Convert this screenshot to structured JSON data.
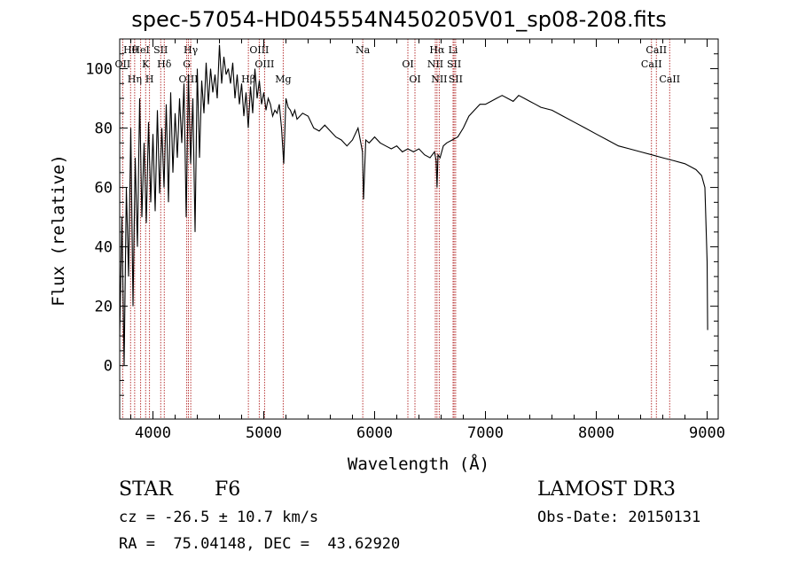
{
  "chart_data": {
    "type": "line",
    "title": "spec-57054-HD045554N450205V01_sp08-208.fits",
    "xlabel": "Wavelength (Å)",
    "ylabel": "Flux (relative)",
    "xlim": [
      3700,
      9100
    ],
    "ylim": [
      -18,
      110
    ],
    "xticks": [
      4000,
      5000,
      6000,
      7000,
      8000,
      9000
    ],
    "yticks": [
      0,
      20,
      40,
      60,
      80,
      100
    ],
    "series": [
      {
        "name": "flux",
        "x": [
          3700,
          3720,
          3740,
          3760,
          3780,
          3800,
          3820,
          3840,
          3860,
          3880,
          3900,
          3920,
          3940,
          3960,
          3980,
          4000,
          4020,
          4040,
          4060,
          4080,
          4100,
          4120,
          4140,
          4160,
          4180,
          4200,
          4220,
          4240,
          4260,
          4280,
          4300,
          4320,
          4340,
          4360,
          4380,
          4400,
          4420,
          4440,
          4460,
          4480,
          4500,
          4520,
          4540,
          4560,
          4580,
          4600,
          4620,
          4640,
          4660,
          4680,
          4700,
          4720,
          4740,
          4760,
          4780,
          4800,
          4820,
          4840,
          4860,
          4880,
          4900,
          4920,
          4940,
          4960,
          4980,
          5000,
          5020,
          5040,
          5060,
          5080,
          5100,
          5120,
          5140,
          5160,
          5180,
          5200,
          5220,
          5240,
          5260,
          5280,
          5300,
          5350,
          5400,
          5450,
          5500,
          5550,
          5600,
          5650,
          5700,
          5750,
          5800,
          5850,
          5890,
          5900,
          5920,
          5950,
          6000,
          6050,
          6100,
          6150,
          6200,
          6250,
          6300,
          6350,
          6400,
          6450,
          6500,
          6540,
          6555,
          6563,
          6572,
          6590,
          6620,
          6650,
          6700,
          6750,
          6800,
          6850,
          6900,
          6950,
          7000,
          7050,
          7100,
          7150,
          7200,
          7250,
          7300,
          7350,
          7400,
          7450,
          7500,
          7600,
          7700,
          7800,
          7900,
          8000,
          8100,
          8200,
          8300,
          8400,
          8500,
          8600,
          8700,
          8800,
          8850,
          8900,
          8950,
          8980,
          9000,
          9005
        ],
        "values": [
          10,
          50,
          0,
          60,
          30,
          80,
          20,
          70,
          40,
          90,
          50,
          75,
          48,
          82,
          55,
          78,
          52,
          86,
          58,
          80,
          60,
          88,
          55,
          92,
          65,
          85,
          70,
          90,
          75,
          95,
          50,
          98,
          68,
          90,
          45,
          100,
          70,
          96,
          85,
          102,
          88,
          100,
          92,
          98,
          90,
          108,
          95,
          104,
          98,
          100,
          95,
          102,
          90,
          98,
          88,
          95,
          84,
          92,
          80,
          94,
          85,
          100,
          90,
          96,
          88,
          92,
          86,
          90,
          88,
          84,
          86,
          85,
          88,
          80,
          68,
          90,
          87,
          86,
          84,
          86,
          83,
          85,
          84,
          80,
          79,
          81,
          79,
          77,
          76,
          74,
          76,
          80,
          72,
          56,
          76,
          75,
          77,
          75,
          74,
          73,
          74,
          72,
          73,
          72,
          73,
          71,
          70,
          72,
          69,
          60,
          71,
          70,
          74,
          75,
          76,
          77,
          80,
          84,
          86,
          88,
          88,
          89,
          90,
          91,
          90,
          89,
          91,
          90,
          89,
          88,
          87,
          86,
          84,
          82,
          80,
          78,
          76,
          74,
          73,
          72,
          71,
          70,
          69,
          68,
          67,
          66,
          64,
          60,
          35,
          12
        ]
      }
    ],
    "lines": [
      {
        "label": "Hθ",
        "x": 3798
      },
      {
        "label": "OII",
        "x": 3727
      },
      {
        "label": "Hη",
        "x": 3835
      },
      {
        "label": "HeI",
        "x": 3889
      },
      {
        "label": "K",
        "x": 3934
      },
      {
        "label": "H",
        "x": 3969
      },
      {
        "label": "SII",
        "x": 4070
      },
      {
        "label": "Hδ",
        "x": 4102
      },
      {
        "label": "OIII",
        "x": 4320
      },
      {
        "label": "Hγ",
        "x": 4341
      },
      {
        "label": "G",
        "x": 4305
      },
      {
        "label": "Hβ",
        "x": 4861
      },
      {
        "label": "OIII",
        "x": 4959
      },
      {
        "label": "OIII",
        "x": 5007
      },
      {
        "label": "Mg",
        "x": 5175
      },
      {
        "label": "Na",
        "x": 5893
      },
      {
        "label": "OI",
        "x": 6300
      },
      {
        "label": "OI",
        "x": 6364
      },
      {
        "label": "Hα",
        "x": 6563
      },
      {
        "label": "NII",
        "x": 6548
      },
      {
        "label": "NII",
        "x": 6583
      },
      {
        "label": "Li",
        "x": 6708
      },
      {
        "label": "SII",
        "x": 6717
      },
      {
        "label": "SII",
        "x": 6731
      },
      {
        "label": "CaII",
        "x": 8542
      },
      {
        "label": "CaII",
        "x": 8498
      },
      {
        "label": "CaII",
        "x": 8662
      }
    ]
  },
  "info": {
    "object_class": "STAR",
    "subclass": "F6",
    "survey": "LAMOST DR3",
    "redshift": "cz = -26.5 ± 10.7 km/s",
    "obs_date": "Obs-Date: 20150131",
    "coords": "RA =  75.04148, DEC =  43.62920"
  },
  "colors": {
    "line_marker": "#b02020",
    "spectrum": "#000000"
  }
}
